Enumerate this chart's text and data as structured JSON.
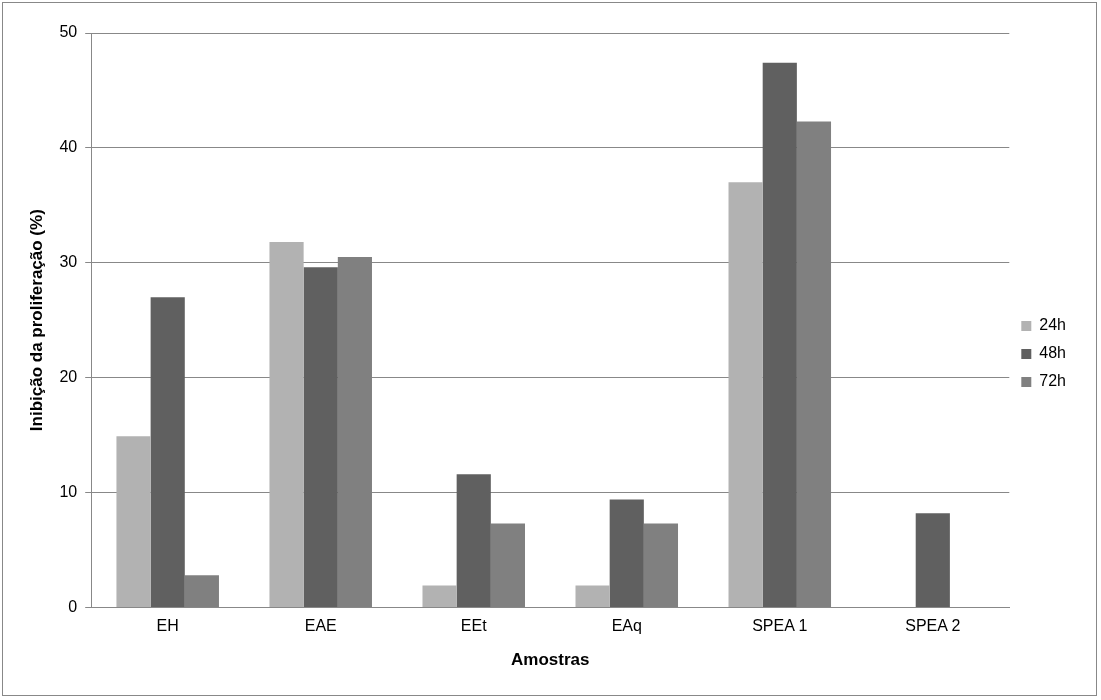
{
  "chart_data": {
    "type": "bar",
    "xlabel": "Amostras",
    "ylabel": "Inibição da proliferação (%)",
    "categories": [
      "EH",
      "EAE",
      "EEt",
      "EAq",
      "SPEA 1",
      "SPEA 2"
    ],
    "series": [
      {
        "name": "24h",
        "color": "#b2b2b2",
        "values": [
          14.9,
          31.8,
          1.9,
          1.9,
          37.0,
          null
        ]
      },
      {
        "name": "48h",
        "color": "#606060",
        "values": [
          27.0,
          29.6,
          11.6,
          9.4,
          47.4,
          8.2
        ]
      },
      {
        "name": "72h",
        "color": "#808080",
        "values": [
          2.8,
          30.5,
          7.3,
          7.3,
          42.3,
          null
        ]
      }
    ],
    "ylim": [
      0,
      50
    ],
    "yticks": [
      0,
      10,
      20,
      30,
      40,
      50
    ],
    "grid": "y",
    "legend": "right"
  }
}
